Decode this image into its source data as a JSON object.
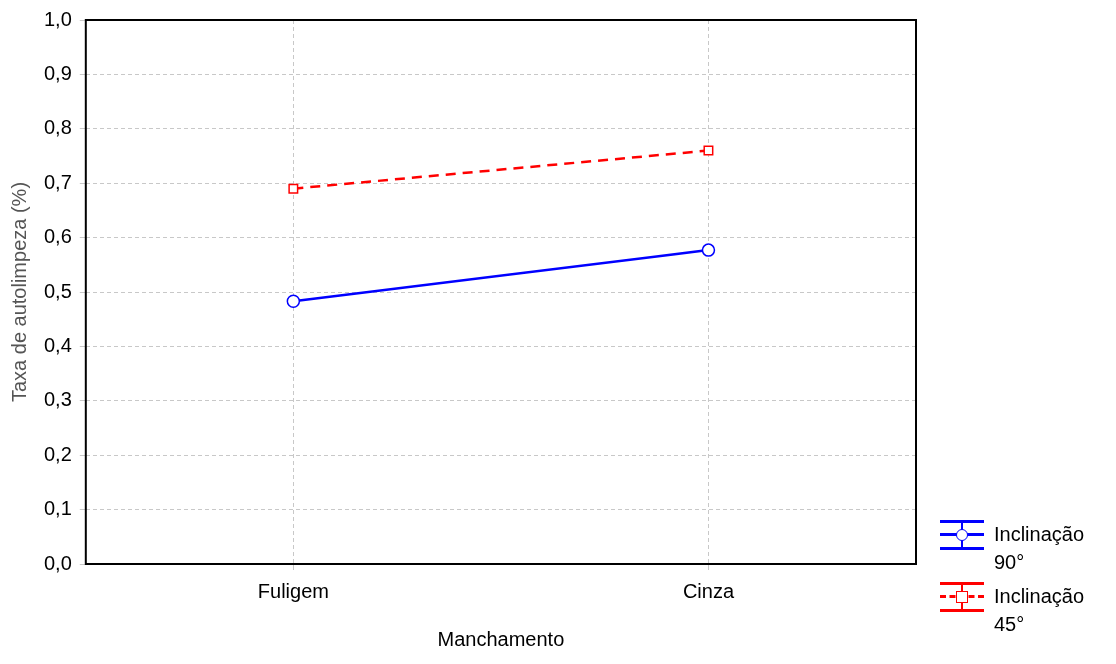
{
  "chart_data": {
    "type": "line",
    "xlabel": "Manchamento",
    "ylabel": "Taxa de autolimpeza (%)",
    "categories": [
      "Fuligem",
      "Cinza"
    ],
    "series": [
      {
        "name": "Inclinação 90°",
        "color": "#0000ff",
        "values": [
          0.483,
          0.577
        ],
        "marker": "circle",
        "line_style": "solid"
      },
      {
        "name": "Inclinação 45°",
        "color": "#ff0000",
        "values": [
          0.69,
          0.76
        ],
        "marker": "square",
        "line_style": "dashed"
      }
    ],
    "ylim": [
      0,
      1
    ],
    "yticks": [
      {
        "value": 0,
        "label": "0,0"
      },
      {
        "value": 0.1,
        "label": "0,1"
      },
      {
        "value": 0.2,
        "label": "0,2"
      },
      {
        "value": 0.3,
        "label": "0,3"
      },
      {
        "value": 0.4,
        "label": "0,4"
      },
      {
        "value": 0.5,
        "label": "0,5"
      },
      {
        "value": 0.6,
        "label": "0,6"
      },
      {
        "value": 0.7,
        "label": "0,7"
      },
      {
        "value": 0.8,
        "label": "0,8"
      },
      {
        "value": 0.9,
        "label": "0,9"
      },
      {
        "value": 1,
        "label": "1,0"
      }
    ],
    "grid": true,
    "legend": "bottom right"
  }
}
